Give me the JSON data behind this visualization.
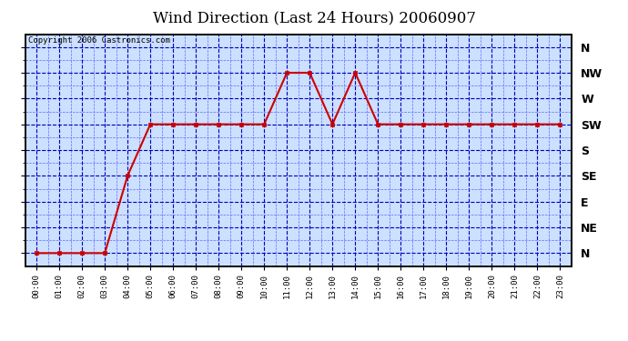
{
  "title": "Wind Direction (Last 24 Hours) 20060907",
  "copyright_text": "Copyright 2006 Castronics.com",
  "bg_color": "#ffffff",
  "plot_bg_color": "#cce0ff",
  "line_color": "#cc0000",
  "marker_color": "#cc0000",
  "grid_color_major": "#0000bb",
  "grid_color_minor": "#6666ff",
  "border_color": "#000000",
  "x_labels": [
    "00:00",
    "01:00",
    "02:00",
    "03:00",
    "04:00",
    "05:00",
    "06:00",
    "07:00",
    "08:00",
    "09:00",
    "10:00",
    "11:00",
    "12:00",
    "13:00",
    "14:00",
    "15:00",
    "16:00",
    "17:00",
    "18:00",
    "19:00",
    "20:00",
    "21:00",
    "22:00",
    "23:00"
  ],
  "y_labels": [
    "N",
    "NE",
    "E",
    "SE",
    "S",
    "SW",
    "W",
    "NW",
    "N"
  ],
  "y_values": [
    0,
    1,
    2,
    3,
    4,
    5,
    6,
    7,
    8
  ],
  "data_y": [
    0,
    0,
    0,
    0,
    3,
    5,
    5,
    5,
    5,
    5,
    5,
    7,
    7,
    5,
    7,
    5,
    5,
    5,
    5,
    5,
    5,
    5,
    5,
    5
  ],
  "title_fontsize": 12,
  "copyright_fontsize": 6.5,
  "ylabel_fontsize": 9,
  "xlabel_fontsize": 6.5
}
